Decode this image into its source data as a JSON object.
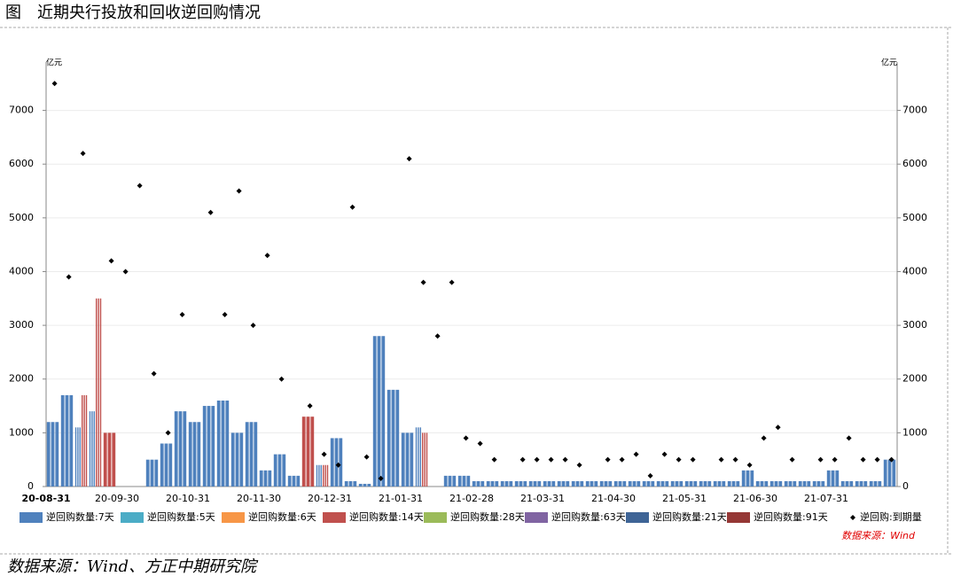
{
  "title": "图　近期央行投放和回收逆回购情况",
  "footer": "数据来源：Wind、方正中期研究院",
  "chart_data": {
    "type": "bar",
    "source": "数据来源：Wind",
    "y_unit": "亿元",
    "y2_unit": "亿元",
    "ylim": [
      0,
      7900
    ],
    "yticks": [
      0,
      1000,
      2000,
      3000,
      4000,
      5000,
      6000,
      7000
    ],
    "y2lim": [
      0,
      7900
    ],
    "y2ticks": [
      0,
      1000,
      2000,
      3000,
      4000,
      5000,
      6000,
      7000
    ],
    "grid": true,
    "legend": "bottom",
    "categories": [
      "20-08-31",
      null,
      null,
      null,
      null,
      "20-09-30",
      null,
      null,
      null,
      null,
      "20-10-31",
      null,
      null,
      null,
      null,
      "20-11-30",
      null,
      null,
      null,
      null,
      "20-12-31",
      null,
      null,
      null,
      null,
      "21-01-31",
      null,
      null,
      null,
      null,
      "21-02-28",
      null,
      null,
      null,
      null,
      "21-03-31",
      null,
      null,
      null,
      null,
      "21-04-30",
      null,
      null,
      null,
      null,
      "21-05-31",
      null,
      null,
      null,
      null,
      "21-06-30",
      null,
      null,
      null,
      null,
      "21-07-31",
      null,
      null,
      null,
      null
    ],
    "series": [
      {
        "name": "逆回购数量:7天",
        "color": "#4f81bd",
        "marker": "bar",
        "values": [
          1200,
          1700,
          1100,
          1400,
          null,
          null,
          null,
          500,
          800,
          1400,
          1200,
          1500,
          1600,
          1000,
          1200,
          300,
          600,
          200,
          null,
          400,
          900,
          100,
          50,
          2800,
          1800,
          1000,
          1100,
          null,
          200,
          200,
          100,
          100,
          100,
          100,
          100,
          100,
          100,
          100,
          100,
          100,
          100,
          100,
          100,
          100,
          100,
          100,
          100,
          100,
          100,
          300,
          100,
          100,
          100,
          100,
          100,
          300,
          100,
          100,
          100,
          500
        ]
      },
      {
        "name": "逆回购数量:5天",
        "color": "#4bacc6",
        "marker": "bar"
      },
      {
        "name": "逆回购数量:6天",
        "color": "#f79646",
        "marker": "bar"
      },
      {
        "name": "逆回购数量:14天",
        "color": "#c0504d",
        "marker": "bar",
        "values": [
          null,
          null,
          1700,
          3500,
          1000,
          null,
          null,
          null,
          null,
          null,
          null,
          null,
          null,
          null,
          null,
          null,
          null,
          null,
          1300,
          400,
          null,
          null,
          null,
          null,
          null,
          null,
          1000,
          null,
          null,
          null,
          null,
          null,
          null,
          null,
          null,
          null,
          null,
          null,
          null,
          null,
          null,
          null,
          null,
          null,
          null,
          null,
          null,
          null,
          null,
          null,
          null,
          null,
          null,
          null,
          null,
          null,
          null,
          null,
          null,
          null
        ]
      },
      {
        "name": "逆回购数量:28天",
        "color": "#9bbb59",
        "marker": "bar"
      },
      {
        "name": "逆回购数量:63天",
        "color": "#8064a2",
        "marker": "bar"
      },
      {
        "name": "逆回购数量:21天",
        "color": "#3e6496",
        "marker": "bar"
      },
      {
        "name": "逆回购数量:91天",
        "color": "#953735",
        "marker": "bar"
      },
      {
        "name": "逆回购:到期量",
        "color": "#000000",
        "marker": "diamond",
        "values": [
          7500,
          3900,
          6200,
          null,
          4200,
          4000,
          5600,
          2100,
          1000,
          3200,
          null,
          5100,
          3200,
          5500,
          3000,
          4300,
          2000,
          null,
          1500,
          600,
          400,
          5200,
          550,
          150,
          null,
          6100,
          3800,
          2800,
          3800,
          900,
          800,
          500,
          null,
          500,
          500,
          500,
          500,
          400,
          null,
          500,
          500,
          600,
          200,
          600,
          500,
          500,
          null,
          500,
          500,
          400,
          900,
          1100,
          500,
          null,
          500,
          500,
          900,
          500,
          500,
          500
        ]
      }
    ]
  }
}
